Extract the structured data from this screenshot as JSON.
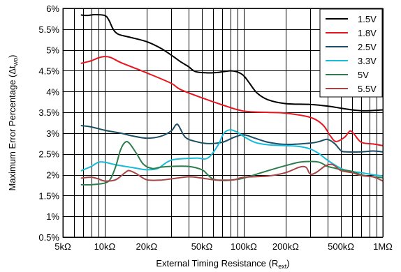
{
  "chart_data": {
    "type": "line",
    "xscale": "log",
    "xlim": [
      5000,
      1000000
    ],
    "ylim": [
      0.5,
      6
    ],
    "xlabel_main": "External Timing Resistance (R",
    "xlabel_sub": "ext",
    "xlabel_end": ")",
    "ylabel_main": "Maximum Error Percentage (Δt",
    "ylabel_sub": "wo",
    "ylabel_end": ")",
    "grid": true,
    "legend_position": "top-right",
    "x_ticks": [
      {
        "value": 5000,
        "label": "5kΩ"
      },
      {
        "value": 10000,
        "label": "10kΩ"
      },
      {
        "value": 20000,
        "label": "20kΩ"
      },
      {
        "value": 50000,
        "label": "50kΩ"
      },
      {
        "value": 100000,
        "label": "100kΩ"
      },
      {
        "value": 200000,
        "label": "200kΩ"
      },
      {
        "value": 500000,
        "label": "500kΩ"
      },
      {
        "value": 1000000,
        "label": "1MΩ"
      }
    ],
    "y_ticks": [
      {
        "value": 0.5,
        "label": "0.5%"
      },
      {
        "value": 1,
        "label": "1%"
      },
      {
        "value": 1.5,
        "label": "1.5%"
      },
      {
        "value": 2,
        "label": "2%"
      },
      {
        "value": 2.5,
        "label": "2.5%"
      },
      {
        "value": 3,
        "label": "3%"
      },
      {
        "value": 3.5,
        "label": "3.5%"
      },
      {
        "value": 4,
        "label": "4%"
      },
      {
        "value": 4.5,
        "label": "4.5%"
      },
      {
        "value": 5,
        "label": "5%"
      },
      {
        "value": 5.5,
        "label": "5.5%"
      },
      {
        "value": 6,
        "label": "6%"
      }
    ],
    "minor_x_gridlines": [
      5000,
      6000,
      7000,
      8000,
      9000,
      10000,
      20000,
      30000,
      40000,
      50000,
      60000,
      70000,
      80000,
      90000,
      100000,
      200000,
      300000,
      400000,
      500000,
      600000,
      700000,
      800000,
      900000,
      1000000
    ],
    "series": [
      {
        "name": "1.5V",
        "color": "#000000",
        "points": [
          [
            6800,
            5.84
          ],
          [
            7500,
            5.83
          ],
          [
            8500,
            5.85
          ],
          [
            10000,
            5.83
          ],
          [
            10700,
            5.72
          ],
          [
            11500,
            5.5
          ],
          [
            12500,
            5.38
          ],
          [
            15000,
            5.31
          ],
          [
            20000,
            5.2
          ],
          [
            25000,
            5.05
          ],
          [
            30000,
            4.88
          ],
          [
            35000,
            4.72
          ],
          [
            40000,
            4.6
          ],
          [
            45000,
            4.48
          ],
          [
            55000,
            4.45
          ],
          [
            65000,
            4.46
          ],
          [
            80000,
            4.5
          ],
          [
            90000,
            4.47
          ],
          [
            100000,
            4.38
          ],
          [
            110000,
            4.2
          ],
          [
            125000,
            3.96
          ],
          [
            150000,
            3.8
          ],
          [
            200000,
            3.71
          ],
          [
            300000,
            3.69
          ],
          [
            400000,
            3.65
          ],
          [
            500000,
            3.6
          ],
          [
            600000,
            3.56
          ],
          [
            700000,
            3.54
          ],
          [
            800000,
            3.54
          ],
          [
            1000000,
            3.56
          ]
        ]
      },
      {
        "name": "1.8V",
        "color": "#e8141e",
        "points": [
          [
            6800,
            4.68
          ],
          [
            8000,
            4.74
          ],
          [
            9000,
            4.81
          ],
          [
            10000,
            4.84
          ],
          [
            11000,
            4.82
          ],
          [
            13000,
            4.7
          ],
          [
            16000,
            4.58
          ],
          [
            20000,
            4.45
          ],
          [
            30000,
            4.2
          ],
          [
            35000,
            4.05
          ],
          [
            50000,
            3.85
          ],
          [
            70000,
            3.68
          ],
          [
            100000,
            3.53
          ],
          [
            150000,
            3.5
          ],
          [
            200000,
            3.48
          ],
          [
            300000,
            3.38
          ],
          [
            370000,
            3.2
          ],
          [
            420000,
            2.93
          ],
          [
            460000,
            2.8
          ],
          [
            530000,
            2.9
          ],
          [
            580000,
            3.05
          ],
          [
            620000,
            2.98
          ],
          [
            700000,
            2.78
          ],
          [
            850000,
            2.74
          ],
          [
            1000000,
            2.7
          ]
        ]
      },
      {
        "name": "2.5V",
        "color": "#1d4e67",
        "points": [
          [
            6800,
            3.18
          ],
          [
            8000,
            3.15
          ],
          [
            10000,
            3.07
          ],
          [
            13000,
            3.0
          ],
          [
            16000,
            2.93
          ],
          [
            20000,
            2.88
          ],
          [
            25000,
            2.92
          ],
          [
            30000,
            3.05
          ],
          [
            32500,
            3.2
          ],
          [
            34000,
            3.18
          ],
          [
            38000,
            2.9
          ],
          [
            45000,
            2.8
          ],
          [
            55000,
            2.75
          ],
          [
            70000,
            2.78
          ],
          [
            85000,
            2.9
          ],
          [
            100000,
            2.96
          ],
          [
            120000,
            2.88
          ],
          [
            150000,
            2.78
          ],
          [
            200000,
            2.73
          ],
          [
            300000,
            2.76
          ],
          [
            350000,
            2.8
          ],
          [
            400000,
            2.85
          ],
          [
            450000,
            2.75
          ],
          [
            500000,
            2.58
          ],
          [
            550000,
            2.55
          ],
          [
            700000,
            2.55
          ],
          [
            850000,
            2.57
          ],
          [
            1000000,
            2.55
          ]
        ]
      },
      {
        "name": "3.3V",
        "color": "#17bad7",
        "points": [
          [
            6800,
            2.1
          ],
          [
            8000,
            2.2
          ],
          [
            9000,
            2.3
          ],
          [
            10000,
            2.3
          ],
          [
            12000,
            2.24
          ],
          [
            16000,
            2.17
          ],
          [
            20000,
            2.12
          ],
          [
            24000,
            2.15
          ],
          [
            28000,
            2.3
          ],
          [
            32000,
            2.37
          ],
          [
            45000,
            2.4
          ],
          [
            55000,
            2.4
          ],
          [
            65000,
            2.7
          ],
          [
            72000,
            3.0
          ],
          [
            80000,
            3.08
          ],
          [
            90000,
            3.02
          ],
          [
            100000,
            2.92
          ],
          [
            120000,
            2.78
          ],
          [
            150000,
            2.72
          ],
          [
            200000,
            2.7
          ],
          [
            250000,
            2.68
          ],
          [
            300000,
            2.62
          ],
          [
            350000,
            2.5
          ],
          [
            400000,
            2.35
          ],
          [
            500000,
            2.15
          ],
          [
            600000,
            2.08
          ],
          [
            700000,
            2.05
          ],
          [
            850000,
            2.0
          ],
          [
            1000000,
            1.97
          ]
        ]
      },
      {
        "name": "5V",
        "color": "#2e7d4c",
        "points": [
          [
            6800,
            1.76
          ],
          [
            8000,
            1.76
          ],
          [
            10000,
            1.8
          ],
          [
            11000,
            1.9
          ],
          [
            12000,
            2.2
          ],
          [
            13000,
            2.6
          ],
          [
            14000,
            2.78
          ],
          [
            15000,
            2.76
          ],
          [
            17000,
            2.5
          ],
          [
            19000,
            2.25
          ],
          [
            22000,
            2.15
          ],
          [
            25000,
            2.18
          ],
          [
            30000,
            2.2
          ],
          [
            40000,
            2.2
          ],
          [
            50000,
            2.12
          ],
          [
            55000,
            2.0
          ],
          [
            60000,
            1.9
          ],
          [
            70000,
            1.86
          ],
          [
            85000,
            1.88
          ],
          [
            100000,
            1.92
          ],
          [
            150000,
            2.1
          ],
          [
            200000,
            2.22
          ],
          [
            250000,
            2.3
          ],
          [
            300000,
            2.32
          ],
          [
            350000,
            2.3
          ],
          [
            400000,
            2.2
          ],
          [
            450000,
            2.16
          ],
          [
            500000,
            2.12
          ],
          [
            600000,
            2.08
          ],
          [
            700000,
            2.0
          ],
          [
            850000,
            1.95
          ],
          [
            1000000,
            1.93
          ]
        ]
      },
      {
        "name": "5.5V",
        "color": "#a64545",
        "points": [
          [
            6800,
            1.92
          ],
          [
            8000,
            1.94
          ],
          [
            9000,
            1.9
          ],
          [
            10000,
            1.85
          ],
          [
            12000,
            1.88
          ],
          [
            14000,
            2.05
          ],
          [
            15000,
            2.1
          ],
          [
            17000,
            2.02
          ],
          [
            20000,
            1.88
          ],
          [
            25000,
            1.87
          ],
          [
            30000,
            1.9
          ],
          [
            40000,
            1.95
          ],
          [
            50000,
            1.92
          ],
          [
            60000,
            1.88
          ],
          [
            70000,
            1.87
          ],
          [
            85000,
            1.88
          ],
          [
            100000,
            1.94
          ],
          [
            150000,
            1.97
          ],
          [
            200000,
            2.05
          ],
          [
            250000,
            2.18
          ],
          [
            280000,
            2.18
          ],
          [
            300000,
            2.02
          ],
          [
            330000,
            2.05
          ],
          [
            380000,
            2.2
          ],
          [
            420000,
            2.25
          ],
          [
            450000,
            2.22
          ],
          [
            500000,
            2.1
          ],
          [
            600000,
            2.05
          ],
          [
            700000,
            1.98
          ],
          [
            850000,
            1.95
          ],
          [
            1000000,
            1.85
          ]
        ]
      }
    ]
  }
}
